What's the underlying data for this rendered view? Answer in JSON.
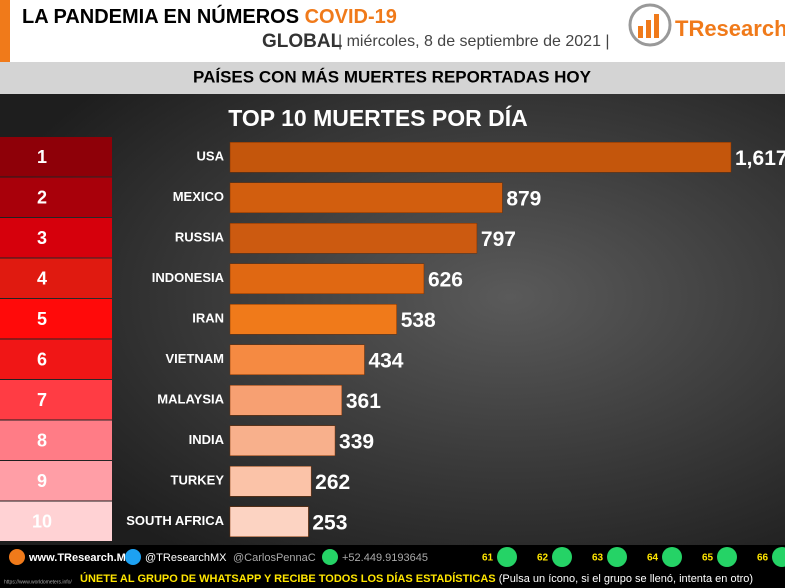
{
  "header": {
    "title": "LA PANDEMIA EN NÚMEROS",
    "highlight": "COVID-19",
    "region": "GLOBAL",
    "date": "| miércoles, 8 de septiembre de 2021 |",
    "logo": "TResearch"
  },
  "subheader": "PAÍSES CON MÁS MUERTES REPORTADAS HOY",
  "chart_data": {
    "type": "bar",
    "orientation": "horizontal",
    "title": "TOP 10 MUERTES POR DÍA",
    "ranks": [
      1,
      2,
      3,
      4,
      5,
      6,
      7,
      8,
      9,
      10
    ],
    "rank_colors": [
      "#8e0008",
      "#a8000a",
      "#d6000c",
      "#e01a10",
      "#ff0a0a",
      "#f01616",
      "#ff3c44",
      "#ff7c86",
      "#ff9ea6",
      "#ffd2d4"
    ],
    "categories": [
      "USA",
      "MEXICO",
      "RUSSIA",
      "INDONESIA",
      "IRAN",
      "VIETNAM",
      "MALAYSIA",
      "INDIA",
      "TURKEY",
      "SOUTH AFRICA"
    ],
    "values": [
      1617,
      879,
      797,
      626,
      538,
      434,
      361,
      339,
      262,
      253
    ],
    "value_labels": [
      "1,617",
      "879",
      "797",
      "626",
      "538",
      "434",
      "361",
      "339",
      "262",
      "253"
    ],
    "colors": [
      "#c4560c",
      "#d25e0e",
      "#cc5a10",
      "#e06812",
      "#f07a1a",
      "#f58a42",
      "#f7a072",
      "#f8b08c",
      "#fbc3a8",
      "#fcd3c2"
    ]
  },
  "footer": {
    "web": "www.TResearch.Mx",
    "twitter": "@TResearchMX",
    "twitter2": "@CarlosPennaC",
    "phone": "+52.449.9193645",
    "groups": [
      "61",
      "62",
      "63",
      "64",
      "65",
      "66"
    ],
    "join": "ÚNETE AL GRUPO DE WHATSAPP Y RECIBE TODOS LOS DÍAS ESTADÍSTICAS",
    "note": "(Pulsa un ícono, si el grupo se llenó, intenta en otro)",
    "source": "https://www.worldometers.info/"
  }
}
